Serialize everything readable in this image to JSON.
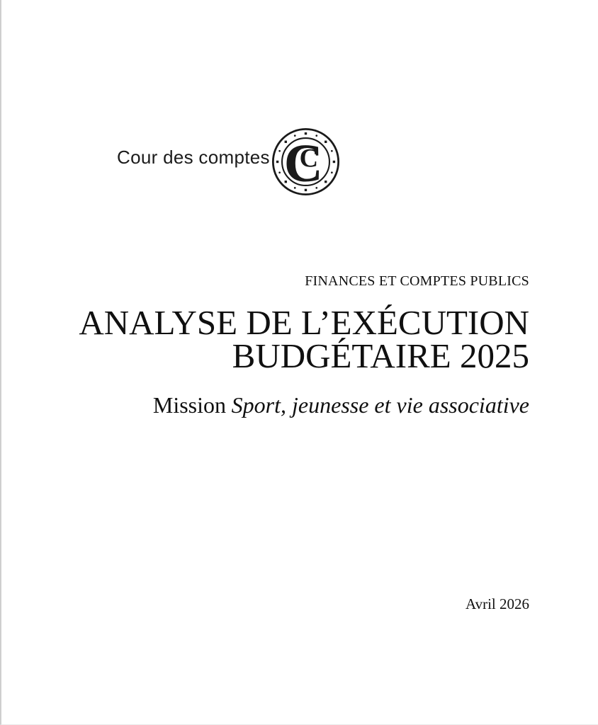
{
  "page": {
    "kind": "report-cover"
  },
  "brand": {
    "org_name": "Cour des comptes",
    "seal": {
      "label": "cour-des-comptes-seal",
      "monogram_large": "C",
      "monogram_small": "C"
    }
  },
  "cover": {
    "collection": "FINANCES ET COMPTES PUBLICS",
    "title_lines": [
      "ANALYSE DE L’EXÉCUTION",
      "BUDGÉTAIRE 2025"
    ],
    "subtitle_prefix": "Mission",
    "subtitle_emphasis": "Sport, jeunesse et vie associative",
    "date": "Avril 2026"
  },
  "colors": {
    "page_bg": "#ffffff",
    "text": "#101010",
    "brand_text": "#1b1b1b",
    "seal": "#1a1a1a",
    "left_edge": "#cfcfcf"
  }
}
